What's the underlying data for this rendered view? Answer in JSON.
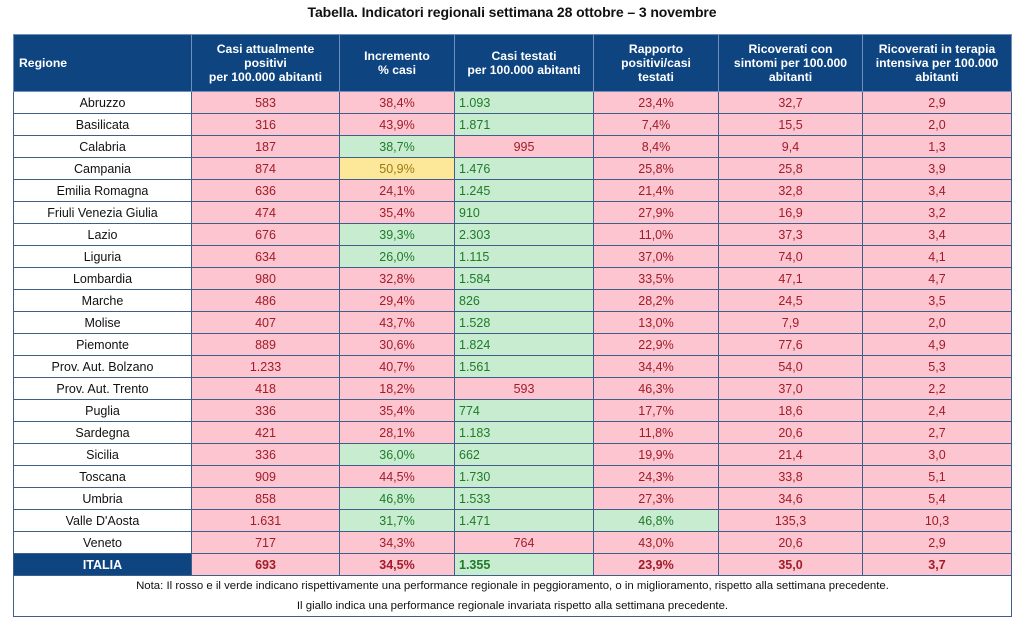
{
  "title": "Tabella. Indicatori regionali settimana 28 ottobre – 3 novembre",
  "headers": [
    "Regione",
    "Casi attualmente positivi per 100.000 abitanti",
    "Incremento % casi",
    "Casi testati per 100.000 abitanti",
    "Rapporto positivi/casi testati",
    "Ricoverati con sintomi per 100.000 abitanti",
    "Ricoverati in terapia intensiva per 100.000 abitanti"
  ],
  "header_lines": [
    [
      "Regione"
    ],
    [
      "Casi attualmente",
      "positivi",
      "per 100.000 abitanti"
    ],
    [
      "Incremento",
      "% casi"
    ],
    [
      "Casi testati",
      "per 100.000 abitanti"
    ],
    [
      "Rapporto",
      "positivi/casi",
      "testati"
    ],
    [
      "Ricoverati con",
      "sintomi per 100.000",
      "abitanti"
    ],
    [
      "Ricoverati in terapia",
      "intensiva per 100.000",
      "abitanti"
    ]
  ],
  "colors": {
    "header_bg": "#0e4580",
    "red_bg": "#fcc5cf",
    "red_text": "#a01c2a",
    "green_bg": "#c8ecd0",
    "green_text": "#1f7a2a",
    "yellow_bg": "#fde89a",
    "yellow_text": "#9a7a12"
  },
  "rows": [
    {
      "region": "Abruzzo",
      "cells": [
        [
          "583",
          "red"
        ],
        [
          "38,4%",
          "red"
        ],
        [
          "1.093",
          "green"
        ],
        [
          "23,4%",
          "red"
        ],
        [
          "32,7",
          "red"
        ],
        [
          "2,9",
          "red"
        ]
      ]
    },
    {
      "region": "Basilicata",
      "cells": [
        [
          "316",
          "red"
        ],
        [
          "43,9%",
          "red"
        ],
        [
          "1.871",
          "green"
        ],
        [
          "7,4%",
          "red"
        ],
        [
          "15,5",
          "red"
        ],
        [
          "2,0",
          "red"
        ]
      ]
    },
    {
      "region": "Calabria",
      "cells": [
        [
          "187",
          "red"
        ],
        [
          "38,7%",
          "green"
        ],
        [
          "995",
          "red"
        ],
        [
          "8,4%",
          "red"
        ],
        [
          "9,4",
          "red"
        ],
        [
          "1,3",
          "red"
        ]
      ]
    },
    {
      "region": "Campania",
      "cells": [
        [
          "874",
          "red"
        ],
        [
          "50,9%",
          "yellow"
        ],
        [
          "1.476",
          "green"
        ],
        [
          "25,8%",
          "red"
        ],
        [
          "25,8",
          "red"
        ],
        [
          "3,9",
          "red"
        ]
      ]
    },
    {
      "region": "Emilia Romagna",
      "cells": [
        [
          "636",
          "red"
        ],
        [
          "24,1%",
          "red"
        ],
        [
          "1.245",
          "green"
        ],
        [
          "21,4%",
          "red"
        ],
        [
          "32,8",
          "red"
        ],
        [
          "3,4",
          "red"
        ]
      ]
    },
    {
      "region": "Friuli Venezia Giulia",
      "cells": [
        [
          "474",
          "red"
        ],
        [
          "35,4%",
          "red"
        ],
        [
          "910",
          "green"
        ],
        [
          "27,9%",
          "red"
        ],
        [
          "16,9",
          "red"
        ],
        [
          "3,2",
          "red"
        ]
      ]
    },
    {
      "region": "Lazio",
      "cells": [
        [
          "676",
          "red"
        ],
        [
          "39,3%",
          "green"
        ],
        [
          "2.303",
          "green"
        ],
        [
          "11,0%",
          "red"
        ],
        [
          "37,3",
          "red"
        ],
        [
          "3,4",
          "red"
        ]
      ]
    },
    {
      "region": "Liguria",
      "cells": [
        [
          "634",
          "red"
        ],
        [
          "26,0%",
          "green"
        ],
        [
          "1.115",
          "green"
        ],
        [
          "37,0%",
          "red"
        ],
        [
          "74,0",
          "red"
        ],
        [
          "4,1",
          "red"
        ]
      ]
    },
    {
      "region": "Lombardia",
      "cells": [
        [
          "980",
          "red"
        ],
        [
          "32,8%",
          "red"
        ],
        [
          "1.584",
          "green"
        ],
        [
          "33,5%",
          "red"
        ],
        [
          "47,1",
          "red"
        ],
        [
          "4,7",
          "red"
        ]
      ]
    },
    {
      "region": "Marche",
      "cells": [
        [
          "486",
          "red"
        ],
        [
          "29,4%",
          "red"
        ],
        [
          "826",
          "green"
        ],
        [
          "28,2%",
          "red"
        ],
        [
          "24,5",
          "red"
        ],
        [
          "3,5",
          "red"
        ]
      ]
    },
    {
      "region": "Molise",
      "cells": [
        [
          "407",
          "red"
        ],
        [
          "43,7%",
          "red"
        ],
        [
          "1.528",
          "green"
        ],
        [
          "13,0%",
          "red"
        ],
        [
          "7,9",
          "red"
        ],
        [
          "2,0",
          "red"
        ]
      ]
    },
    {
      "region": "Piemonte",
      "cells": [
        [
          "889",
          "red"
        ],
        [
          "30,6%",
          "red"
        ],
        [
          "1.824",
          "green"
        ],
        [
          "22,9%",
          "red"
        ],
        [
          "77,6",
          "red"
        ],
        [
          "4,9",
          "red"
        ]
      ]
    },
    {
      "region": "Prov. Aut. Bolzano",
      "cells": [
        [
          "1.233",
          "red"
        ],
        [
          "40,7%",
          "red"
        ],
        [
          "1.561",
          "green"
        ],
        [
          "34,4%",
          "red"
        ],
        [
          "54,0",
          "red"
        ],
        [
          "5,3",
          "red"
        ]
      ]
    },
    {
      "region": "Prov. Aut. Trento",
      "cells": [
        [
          "418",
          "red"
        ],
        [
          "18,2%",
          "red"
        ],
        [
          "593",
          "red"
        ],
        [
          "46,3%",
          "red"
        ],
        [
          "37,0",
          "red"
        ],
        [
          "2,2",
          "red"
        ]
      ]
    },
    {
      "region": "Puglia",
      "cells": [
        [
          "336",
          "red"
        ],
        [
          "35,4%",
          "red"
        ],
        [
          "774",
          "green"
        ],
        [
          "17,7%",
          "red"
        ],
        [
          "18,6",
          "red"
        ],
        [
          "2,4",
          "red"
        ]
      ]
    },
    {
      "region": "Sardegna",
      "cells": [
        [
          "421",
          "red"
        ],
        [
          "28,1%",
          "red"
        ],
        [
          "1.183",
          "green"
        ],
        [
          "11,8%",
          "red"
        ],
        [
          "20,6",
          "red"
        ],
        [
          "2,7",
          "red"
        ]
      ]
    },
    {
      "region": "Sicilia",
      "cells": [
        [
          "336",
          "red"
        ],
        [
          "36,0%",
          "green"
        ],
        [
          "662",
          "green"
        ],
        [
          "19,9%",
          "red"
        ],
        [
          "21,4",
          "red"
        ],
        [
          "3,0",
          "red"
        ]
      ]
    },
    {
      "region": "Toscana",
      "cells": [
        [
          "909",
          "red"
        ],
        [
          "44,5%",
          "red"
        ],
        [
          "1.730",
          "green"
        ],
        [
          "24,3%",
          "red"
        ],
        [
          "33,8",
          "red"
        ],
        [
          "5,1",
          "red"
        ]
      ]
    },
    {
      "region": "Umbria",
      "cells": [
        [
          "858",
          "red"
        ],
        [
          "46,8%",
          "green"
        ],
        [
          "1.533",
          "green"
        ],
        [
          "27,3%",
          "red"
        ],
        [
          "34,6",
          "red"
        ],
        [
          "5,4",
          "red"
        ]
      ]
    },
    {
      "region": "Valle D'Aosta",
      "cells": [
        [
          "1.631",
          "red"
        ],
        [
          "31,7%",
          "green"
        ],
        [
          "1.471",
          "green"
        ],
        [
          "46,8%",
          "green"
        ],
        [
          "135,3",
          "red"
        ],
        [
          "10,3",
          "red"
        ]
      ]
    },
    {
      "region": "Veneto",
      "cells": [
        [
          "717",
          "red"
        ],
        [
          "34,3%",
          "red"
        ],
        [
          "764",
          "red"
        ],
        [
          "43,0%",
          "red"
        ],
        [
          "20,6",
          "red"
        ],
        [
          "2,9",
          "red"
        ]
      ]
    }
  ],
  "total": {
    "region": "ITALIA",
    "cells": [
      [
        "693",
        "red"
      ],
      [
        "34,5%",
        "red"
      ],
      [
        "1.355",
        "green"
      ],
      [
        "23,9%",
        "red"
      ],
      [
        "35,0",
        "red"
      ],
      [
        "3,7",
        "red"
      ]
    ]
  },
  "note_lines": [
    "Nota: Il rosso e il verde indicano rispettivamente una performance regionale in peggioramento, o in miglioramento, rispetto alla settimana precedente.",
    "Il giallo indica una performance regionale invariata rispetto alla settimana precedente."
  ]
}
